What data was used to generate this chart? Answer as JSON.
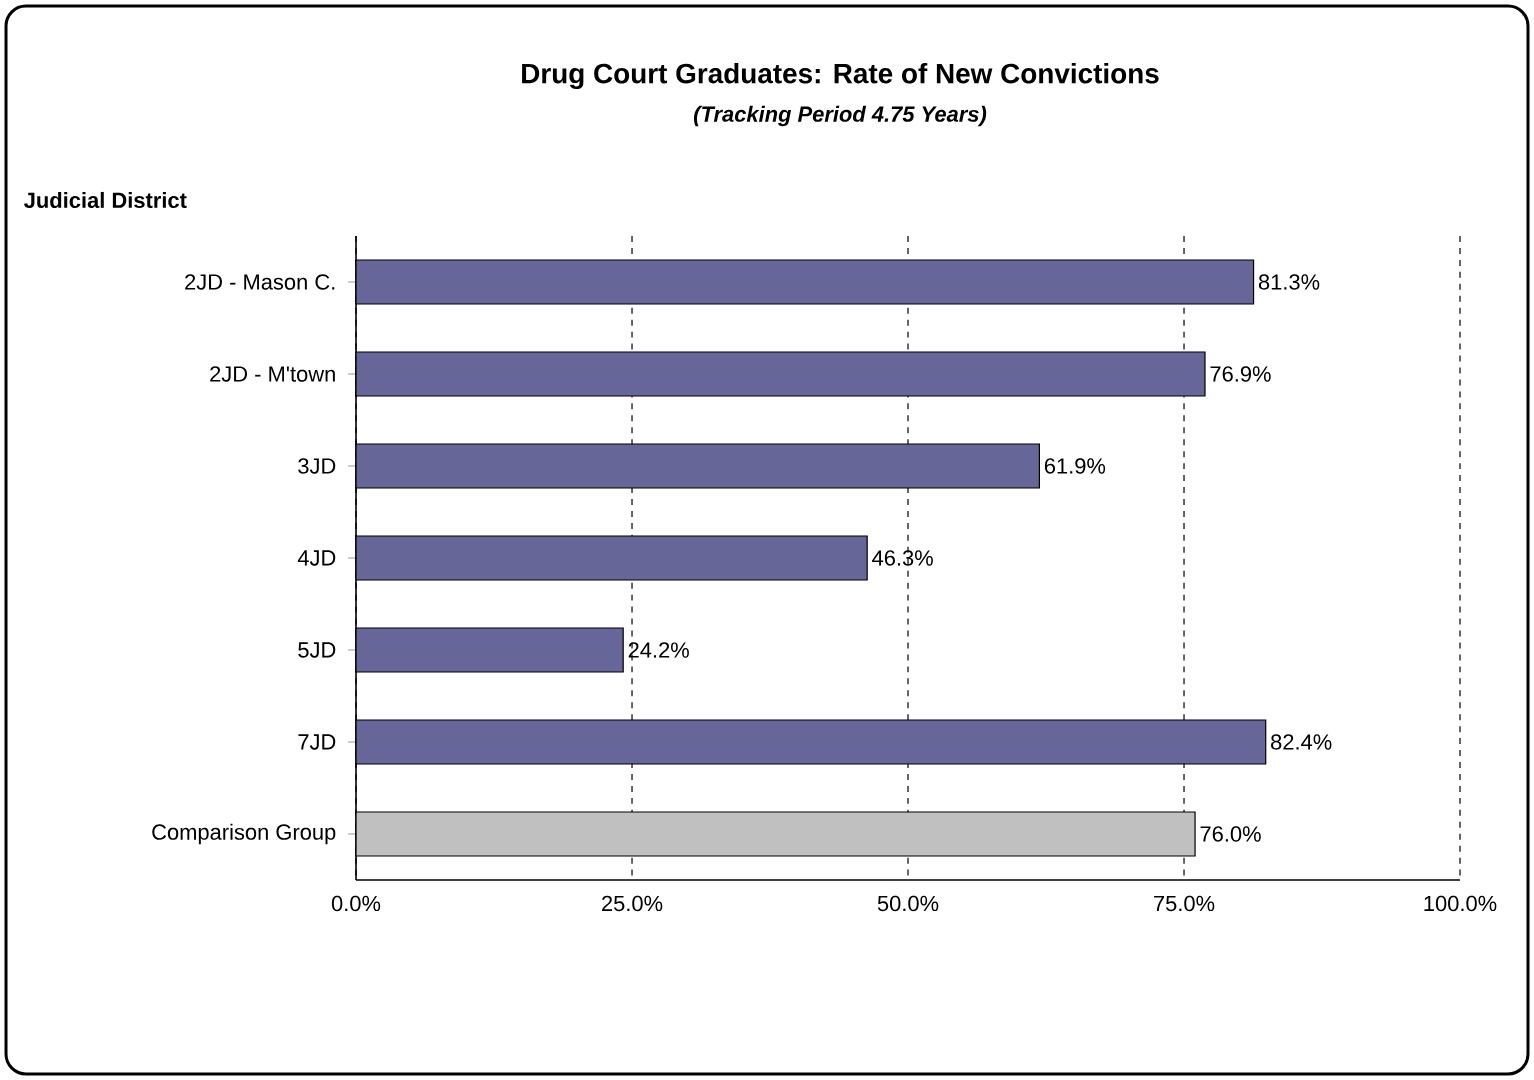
{
  "chart_data": {
    "type": "bar",
    "orientation": "horizontal",
    "title": "Drug Court Graduates: Rate of New Convictions",
    "subtitle": "(Tracking Period 4.75 Years)",
    "ylabel": "Judicial District",
    "categories": [
      "2JD - Mason C.",
      "2JD - M'town",
      "3JD",
      "4JD",
      "5JD",
      "7JD",
      "Comparison Group"
    ],
    "values": [
      81.3,
      76.9,
      61.9,
      46.3,
      24.2,
      82.4,
      76.0
    ],
    "colors": [
      "#666699",
      "#666699",
      "#666699",
      "#666699",
      "#666699",
      "#666699",
      "#c0c0c0"
    ],
    "value_labels": [
      "81.3%",
      "76.9%",
      "61.9%",
      "46.3%",
      "24.2%",
      "82.4%",
      "76.0%"
    ],
    "xlim": [
      0,
      100
    ],
    "xticks": [
      {
        "value": 0,
        "label": "0.0%"
      },
      {
        "value": 25,
        "label": "25.0%"
      },
      {
        "value": 50,
        "label": "50.0%"
      },
      {
        "value": 75,
        "label": "75.0%"
      },
      {
        "value": 100,
        "label": "100.0%"
      }
    ],
    "grid": "x"
  }
}
